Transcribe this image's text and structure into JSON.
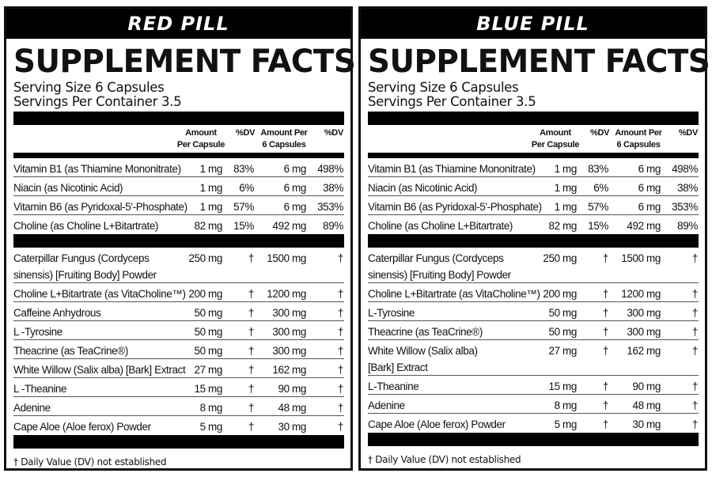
{
  "panels": [
    {
      "name": "RED PILL",
      "title": "SUPPLEMENT FACTS",
      "serving_size": "Serving Size 6 Capsules",
      "servings_per_container": "Servings Per Container 3.5",
      "headers": [
        "Amount\nPer Capsule",
        "%DV",
        "Amount Per\n6 Capsules",
        "%DV"
      ],
      "vitamins": [
        [
          "Vitamin B1 (as Thiamine Mononitrate)",
          "1 mg",
          "83%",
          "6 mg",
          "498%"
        ],
        [
          "Niacin (as Nicotinic Acid)",
          "1 mg",
          "6%",
          "6 mg",
          "38%"
        ],
        [
          "Vitamin B6 (as Pyridoxal-5'-Phosphate)",
          "1 mg",
          "57%",
          "6 mg",
          "353%"
        ],
        [
          "Choline (as Choline L+Bitartrate)",
          "82 mg",
          "15%",
          "492 mg",
          "89%"
        ]
      ],
      "ingredients": [
        [
          "Caterpillar Fungus (Cordyceps sinensis) [Fruiting Body] Powder",
          "250 mg",
          "†",
          "1500 mg",
          "†"
        ],
        [
          "Choline L+Bitartrate (as VitaCholine™)",
          "200 mg",
          "†",
          "1200 mg",
          "†"
        ],
        [
          "Caffeine Anhydrous",
          "50 mg",
          "†",
          "300 mg",
          "†"
        ],
        [
          "L -Tyrosine",
          "50 mg",
          "†",
          "300 mg",
          "†"
        ],
        [
          "Theacrine (as TeaCrine®)",
          "50 mg",
          "†",
          "300 mg",
          "†"
        ],
        [
          "White Willow (Salix alba) [Bark] Extract",
          "27 mg",
          "†",
          "162 mg",
          "†"
        ],
        [
          "L -Theanine",
          "15 mg",
          "†",
          "90 mg",
          "†"
        ],
        [
          "Adenine",
          "8 mg",
          "†",
          "48 mg",
          "†"
        ],
        [
          "Cape Aloe (Aloe ferox) Powder",
          "5 mg",
          "†",
          "30 mg",
          "†"
        ]
      ],
      "footnote": "† Daily Value (DV) not established"
    },
    {
      "name": "BLUE PILL",
      "title": "SUPPLEMENT FACTS",
      "serving_size": "Serving Size 6 Capsules",
      "servings_per_container": "Servings Per Container 3.5",
      "headers": [
        "Amount\nPer Capsule",
        "%DV",
        "Amount Per\n6 Capsules",
        "%DV"
      ],
      "vitamins": [
        [
          "Vitamin B1 (as Thiamine Mononitrate)",
          "1 mg",
          "83%",
          "6 mg",
          "498%"
        ],
        [
          "Niacin (as Nicotinic Acid)",
          "1 mg",
          "6%",
          "6 mg",
          "38%"
        ],
        [
          "Vitamin B6 (as Pyridoxal-5'-Phosphate)",
          "1 mg",
          "57%",
          "6 mg",
          "353%"
        ],
        [
          "Choline (as Choline L+Bitartrate)",
          "82 mg",
          "15%",
          "492 mg",
          "89%"
        ]
      ],
      "ingredients": [
        [
          "Caterpillar Fungus (Cordyceps sinensis) [Fruiting Body] Powder",
          "250 mg",
          "†",
          "1500 mg",
          "†"
        ],
        [
          "Choline L+Bitartrate (as VitaCholine™)",
          "200 mg",
          "†",
          "1200 mg",
          "†"
        ],
        [
          "L-Tyrosine",
          "50 mg",
          "†",
          "300 mg",
          "†"
        ],
        [
          "Theacrine (as TeaCrine®)",
          "50 mg",
          "†",
          "300 mg",
          "†"
        ],
        [
          "White Willow (Salix alba) [Bark] Extract",
          "27 mg",
          "†",
          "162 mg",
          "†"
        ],
        [
          "L-Theanine",
          "15 mg",
          "†",
          "90 mg",
          "†"
        ],
        [
          "Adenine",
          "8 mg",
          "†",
          "48 mg",
          "†"
        ],
        [
          "Cape Aloe (Aloe ferox) Powder",
          "5 mg",
          "†",
          "30 mg",
          "†"
        ]
      ],
      "footnote": "† Daily Value (DV) not established"
    }
  ]
}
